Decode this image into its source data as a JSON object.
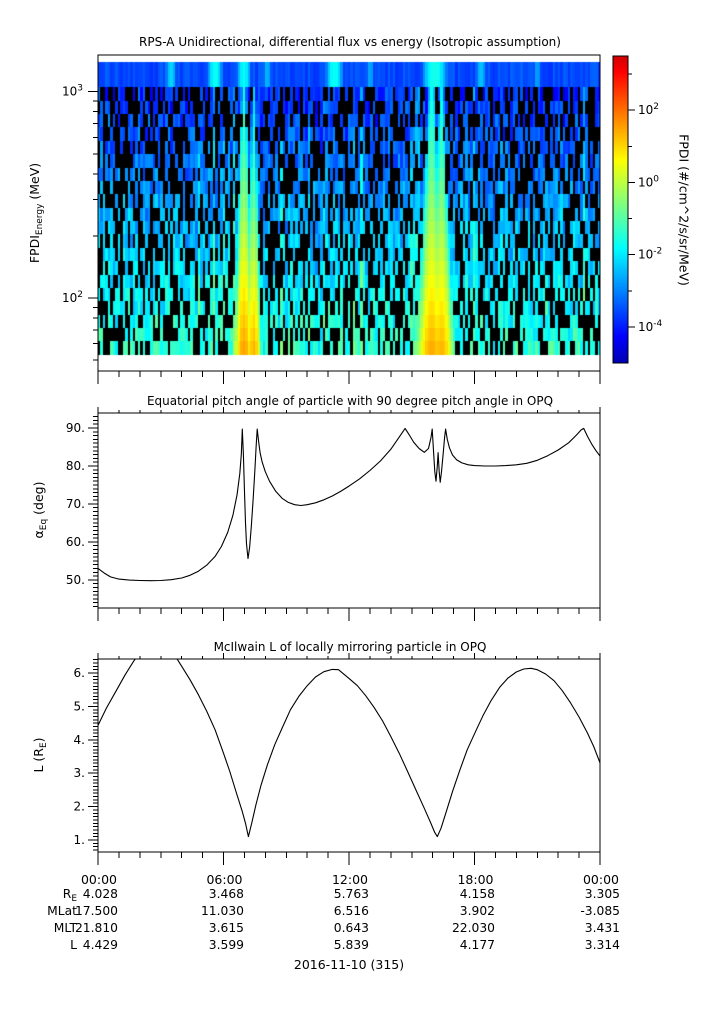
{
  "footer": {
    "date_label": "2016-11-10 (315)"
  },
  "x_axis": {
    "labels": [
      "00:00",
      "06:00",
      "12:00",
      "18:00",
      "00:00"
    ],
    "major_hours": [
      0,
      6,
      12,
      18,
      24
    ],
    "minor_step_hours": 1,
    "range_hours": [
      0,
      24
    ]
  },
  "ephemeris_table": {
    "rows": [
      {
        "label_parts": [
          {
            "text": "R"
          },
          {
            "sub": "E"
          }
        ],
        "values": [
          "4.028",
          "3.468",
          "5.763",
          "4.158",
          "3.305"
        ]
      },
      {
        "label_parts": [
          {
            "text": "MLat"
          }
        ],
        "values": [
          "17.500",
          "11.030",
          "6.516",
          "3.902",
          "-3.085"
        ]
      },
      {
        "label_parts": [
          {
            "text": "MLT"
          }
        ],
        "values": [
          "21.810",
          "3.615",
          "0.643",
          "22.030",
          "3.431"
        ]
      },
      {
        "label_parts": [
          {
            "text": "L"
          }
        ],
        "values": [
          "4.429",
          "3.599",
          "5.839",
          "4.177",
          "3.314"
        ]
      }
    ]
  },
  "chart_data": [
    {
      "id": "rps_flux_spectrogram",
      "type": "heatmap",
      "title": "RPS-A Unidirectional, differential flux vs energy (Isotropic assumption)",
      "ylabel_parts": [
        {
          "text": "FPDI"
        },
        {
          "sub": "Energy"
        },
        {
          "text": " (MeV)"
        }
      ],
      "y_log_range_mev": [
        44.2,
        1507
      ],
      "y_major_tick_exponents": [
        3,
        2
      ],
      "y_minor_ticks_mev": [
        50,
        60,
        70,
        80,
        90,
        200,
        300,
        400,
        500,
        600,
        700,
        800,
        900
      ],
      "data_energy_range_mev": [
        53,
        1390
      ],
      "top_band_range_mev": [
        1050,
        1390
      ],
      "n_energy_bins": 21,
      "n_time_columns": 201,
      "seed": 315,
      "fill_probability": 0.55,
      "background_logflux_top": -3.9,
      "background_logflux_bottom": -1.35,
      "noise_jitter": 0.55,
      "top_band_logflux": -3.55,
      "data_gap_hours": [
        [
          7.13,
          7.22
        ]
      ],
      "plumes": [
        {
          "center_hour": 6.98,
          "half_width_top_h": 0.16,
          "half_width_bottom_h": 0.55,
          "peak_logflux_top": -1.7,
          "peak_logflux_bottom": 1.6
        },
        {
          "center_hour": 7.45,
          "half_width_top_h": 0.12,
          "half_width_bottom_h": 0.42,
          "peak_logflux_top": -2.2,
          "peak_logflux_bottom": 1.45
        },
        {
          "center_hour": 15.95,
          "half_width_top_h": 0.22,
          "half_width_bottom_h": 0.85,
          "peak_logflux_top": -1.8,
          "peak_logflux_bottom": 1.5
        },
        {
          "center_hour": 16.42,
          "half_width_top_h": 0.16,
          "half_width_bottom_h": 0.7,
          "peak_logflux_top": -2.0,
          "peak_logflux_bottom": 1.4
        }
      ],
      "top_band_brightenings": [
        {
          "center_hour": 3.5,
          "half_width_h": 0.25,
          "logflux": -2.2
        },
        {
          "center_hour": 5.6,
          "half_width_h": 0.3,
          "logflux": -1.7
        },
        {
          "center_hour": 6.98,
          "half_width_h": 0.3,
          "logflux": -1.8
        },
        {
          "center_hour": 8.1,
          "half_width_h": 0.2,
          "logflux": -2.5
        },
        {
          "center_hour": 11.3,
          "half_width_h": 0.35,
          "logflux": -1.7
        },
        {
          "center_hour": 13.0,
          "half_width_h": 0.2,
          "logflux": -2.6
        },
        {
          "center_hour": 16.1,
          "half_width_h": 0.5,
          "logflux": -1.6
        },
        {
          "center_hour": 18.3,
          "half_width_h": 0.25,
          "logflux": -2.4
        },
        {
          "center_hour": 21.0,
          "half_width_h": 0.2,
          "logflux": -2.7
        }
      ],
      "colorbar": {
        "label": "FPDI (#/cm^2/s/sr/MeV)",
        "log_range": [
          -5,
          3.5
        ],
        "tick_exponents_labeled": [
          2,
          0,
          -2,
          -4
        ],
        "tick_exponents_minor": [
          3,
          1,
          -1,
          -3
        ]
      }
    },
    {
      "id": "equatorial_pitch_angle",
      "type": "line",
      "title": "Equatorial pitch angle of particle with 90 degree pitch angle in OPQ",
      "ylabel_parts": [
        {
          "text": "α"
        },
        {
          "sub": "Eq"
        },
        {
          "text": " (deg)"
        }
      ],
      "ylim": [
        42.6,
        93.95
      ],
      "y_major_ticks": [
        50,
        60,
        70,
        80,
        90
      ],
      "y_minor_step": 1,
      "tick_label_suffix": ".",
      "points": [
        [
          0,
          53
        ],
        [
          0.3,
          51.8
        ],
        [
          0.6,
          50.8
        ],
        [
          1,
          50.2
        ],
        [
          1.5,
          49.95
        ],
        [
          2,
          49.85
        ],
        [
          2.5,
          49.8
        ],
        [
          3,
          49.85
        ],
        [
          3.5,
          50.05
        ],
        [
          4,
          50.5
        ],
        [
          4.4,
          51.2
        ],
        [
          4.8,
          52.3
        ],
        [
          5.2,
          53.9
        ],
        [
          5.6,
          56.2
        ],
        [
          5.9,
          58.8
        ],
        [
          6.2,
          62.5
        ],
        [
          6.45,
          67
        ],
        [
          6.65,
          72.5
        ],
        [
          6.78,
          78
        ],
        [
          6.85,
          83
        ],
        [
          6.9,
          89.7
        ],
        [
          6.95,
          83
        ],
        [
          7,
          74
        ],
        [
          7.05,
          65
        ],
        [
          7.1,
          59.5
        ],
        [
          7.17,
          55.6
        ],
        [
          7.25,
          58.5
        ],
        [
          7.33,
          64
        ],
        [
          7.42,
          71.5
        ],
        [
          7.5,
          79
        ],
        [
          7.56,
          85
        ],
        [
          7.61,
          89.7
        ],
        [
          7.68,
          86.5
        ],
        [
          7.75,
          83.5
        ],
        [
          7.85,
          81
        ],
        [
          8,
          78.5
        ],
        [
          8.2,
          76
        ],
        [
          8.5,
          73.3
        ],
        [
          8.8,
          71.5
        ],
        [
          9.1,
          70.4
        ],
        [
          9.4,
          69.8
        ],
        [
          9.7,
          69.6
        ],
        [
          10,
          69.8
        ],
        [
          10.4,
          70.3
        ],
        [
          10.8,
          71.1
        ],
        [
          11.2,
          72.1
        ],
        [
          11.6,
          73.3
        ],
        [
          12,
          74.7
        ],
        [
          12.5,
          76.6
        ],
        [
          13,
          78.8
        ],
        [
          13.5,
          81.3
        ],
        [
          14,
          84.4
        ],
        [
          14.35,
          87.2
        ],
        [
          14.68,
          89.9
        ],
        [
          14.9,
          88
        ],
        [
          15.1,
          86.2
        ],
        [
          15.35,
          84.6
        ],
        [
          15.6,
          83.6
        ],
        [
          15.8,
          84.6
        ],
        [
          15.92,
          87.5
        ],
        [
          15.98,
          89.7
        ],
        [
          16.04,
          84
        ],
        [
          16.1,
          78.5
        ],
        [
          16.16,
          76
        ],
        [
          16.22,
          80
        ],
        [
          16.26,
          83.5
        ],
        [
          16.31,
          78.5
        ],
        [
          16.36,
          75.7
        ],
        [
          16.42,
          78.5
        ],
        [
          16.5,
          83
        ],
        [
          16.57,
          87.5
        ],
        [
          16.62,
          89.7
        ],
        [
          16.7,
          87
        ],
        [
          16.8,
          84.8
        ],
        [
          16.95,
          82.9
        ],
        [
          17.15,
          81.6
        ],
        [
          17.4,
          80.8
        ],
        [
          17.7,
          80.3
        ],
        [
          18,
          80.1
        ],
        [
          18.5,
          80
        ],
        [
          19,
          80
        ],
        [
          19.5,
          80.1
        ],
        [
          20,
          80.3
        ],
        [
          20.5,
          80.7
        ],
        [
          21,
          81.5
        ],
        [
          21.5,
          82.7
        ],
        [
          22,
          84.2
        ],
        [
          22.5,
          86.1
        ],
        [
          22.85,
          88
        ],
        [
          23.1,
          89.5
        ],
        [
          23.22,
          89.9
        ],
        [
          23.4,
          87.8
        ],
        [
          23.6,
          85.8
        ],
        [
          23.8,
          84.1
        ],
        [
          24,
          82.6
        ]
      ]
    },
    {
      "id": "mcilwain_l",
      "type": "line",
      "title": "McIlwain L of locally mirroring particle in OPQ",
      "ylabel_parts": [
        {
          "text": "L (R"
        },
        {
          "sub": "E"
        },
        {
          "text": ")"
        }
      ],
      "ylim": [
        0.64,
        6.42
      ],
      "y_major_ticks": [
        1,
        2,
        3,
        4,
        5,
        6
      ],
      "y_minor_step": 0.1,
      "tick_label_suffix": ".",
      "points": [
        [
          0,
          4.43
        ],
        [
          0.4,
          4.95
        ],
        [
          0.9,
          5.5
        ],
        [
          1.3,
          5.95
        ],
        [
          1.7,
          6.35
        ],
        [
          2.1,
          6.7
        ],
        [
          2.5,
          6.92
        ],
        [
          2.9,
          7
        ],
        [
          3.3,
          6.85
        ],
        [
          3.7,
          6.5
        ],
        [
          4,
          6.2
        ],
        [
          4.4,
          5.8
        ],
        [
          4.8,
          5.35
        ],
        [
          5.2,
          4.85
        ],
        [
          5.6,
          4.3
        ],
        [
          6,
          3.6
        ],
        [
          6.3,
          3.05
        ],
        [
          6.6,
          2.45
        ],
        [
          6.9,
          1.85
        ],
        [
          7.05,
          1.5
        ],
        [
          7.19,
          1.1
        ],
        [
          7.35,
          1.5
        ],
        [
          7.55,
          2.05
        ],
        [
          7.8,
          2.65
        ],
        [
          8.1,
          3.25
        ],
        [
          8.45,
          3.85
        ],
        [
          8.8,
          4.35
        ],
        [
          9.2,
          4.9
        ],
        [
          9.6,
          5.3
        ],
        [
          10,
          5.62
        ],
        [
          10.4,
          5.88
        ],
        [
          10.8,
          6.04
        ],
        [
          11.2,
          6.11
        ],
        [
          11.5,
          6.1
        ],
        [
          12,
          5.84
        ],
        [
          12.4,
          5.62
        ],
        [
          12.8,
          5.32
        ],
        [
          13.2,
          4.97
        ],
        [
          13.6,
          4.57
        ],
        [
          14,
          4.1
        ],
        [
          14.4,
          3.6
        ],
        [
          14.8,
          3.05
        ],
        [
          15.2,
          2.5
        ],
        [
          15.6,
          1.95
        ],
        [
          15.9,
          1.52
        ],
        [
          16.1,
          1.22
        ],
        [
          16.22,
          1.1
        ],
        [
          16.4,
          1.35
        ],
        [
          16.65,
          1.85
        ],
        [
          16.95,
          2.45
        ],
        [
          17.3,
          3.1
        ],
        [
          17.65,
          3.7
        ],
        [
          18,
          4.18
        ],
        [
          18.4,
          4.72
        ],
        [
          18.8,
          5.18
        ],
        [
          19.2,
          5.57
        ],
        [
          19.6,
          5.85
        ],
        [
          20,
          6.03
        ],
        [
          20.35,
          6.12
        ],
        [
          20.7,
          6.14
        ],
        [
          21,
          6.1
        ],
        [
          21.4,
          5.97
        ],
        [
          21.8,
          5.77
        ],
        [
          22.2,
          5.47
        ],
        [
          22.6,
          5.1
        ],
        [
          23,
          4.68
        ],
        [
          23.4,
          4.2
        ],
        [
          23.7,
          3.8
        ],
        [
          24,
          3.31
        ]
      ]
    }
  ]
}
